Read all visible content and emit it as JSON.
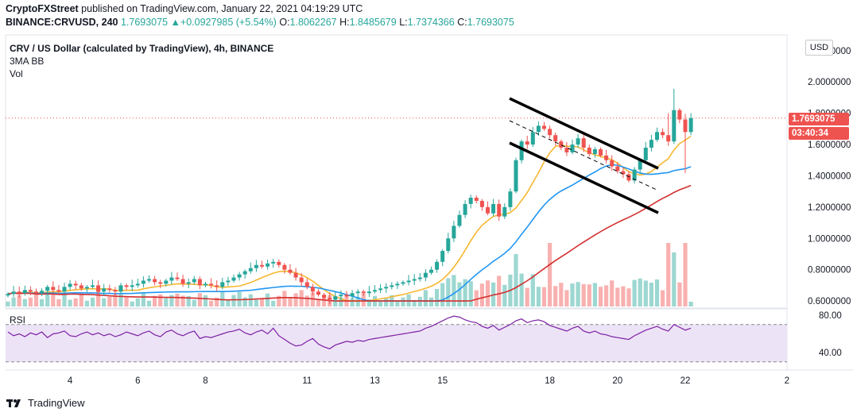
{
  "header": {
    "publisher": "CryptoFXStreet",
    "published_text": " published on TradingView.com, January 22, 2021 04:19:29 UTC",
    "symbol_code": "BINANCE:CRVUSD, 240",
    "last": "1.7693075",
    "change_arrow": "▲",
    "change": "+0.0927985 (+5.54%)",
    "o_label": "O:",
    "o": "1.8062267",
    "h_label": "H:",
    "h": "1.8485679",
    "l_label": "L:",
    "l": "1.7374366",
    "c_label": "C:",
    "c": "1.7693075"
  },
  "legend": {
    "symbol_title": "CRV / US Dollar (calculated by TradingView), 4h, BINANCE",
    "indicator_1": "3MA BB",
    "indicator_2": "Vol",
    "rsi_label": "RSI"
  },
  "price_scale": {
    "currency": "USD",
    "current_price_tag": "1.7693075",
    "countdown_tag": "03:40:34",
    "tag_color": "#ef5350"
  },
  "footer": {
    "brand": "TradingView"
  },
  "colors": {
    "up": "#26a69a",
    "down": "#ef5350",
    "ma_fast": "#f7b731",
    "ma_mid": "#2196f3",
    "ma_slow": "#d32f2f",
    "rsi_line": "#7b1fa2",
    "rsi_band": "#ede3f7"
  },
  "chart_data": [
    {
      "type": "candlestick",
      "title": "CRV / US Dollar (calculated by TradingView), 4h, BINANCE",
      "x_ticks": [
        "4",
        "6",
        "8",
        "11",
        "13",
        "15",
        "18",
        "20",
        "22",
        "2"
      ],
      "x_tick_index": [
        11,
        23,
        35,
        53,
        65,
        77,
        96,
        108,
        120,
        138
      ],
      "y_ticks": [
        "2.2000000",
        "2.0000000",
        "1.8000000",
        "1.6000000",
        "1.4000000",
        "1.2000000",
        "1.0000000",
        "0.8000000",
        "0.6000000"
      ],
      "y_tick_values": [
        2.2,
        2.0,
        1.8,
        1.6,
        1.4,
        1.2,
        1.0,
        0.8,
        0.6
      ],
      "ylim": [
        0.57,
        2.26
      ],
      "candle_count": 122,
      "close": [
        0.645,
        0.66,
        0.65,
        0.67,
        0.66,
        0.65,
        0.665,
        0.69,
        0.67,
        0.66,
        0.69,
        0.71,
        0.7,
        0.68,
        0.69,
        0.7,
        0.66,
        0.68,
        0.67,
        0.66,
        0.7,
        0.69,
        0.7,
        0.71,
        0.73,
        0.74,
        0.72,
        0.71,
        0.73,
        0.75,
        0.74,
        0.71,
        0.72,
        0.74,
        0.7,
        0.71,
        0.7,
        0.69,
        0.72,
        0.73,
        0.75,
        0.77,
        0.79,
        0.81,
        0.83,
        0.82,
        0.84,
        0.85,
        0.83,
        0.8,
        0.78,
        0.75,
        0.72,
        0.69,
        0.66,
        0.64,
        0.62,
        0.61,
        0.63,
        0.64,
        0.63,
        0.65,
        0.66,
        0.65,
        0.66,
        0.67,
        0.68,
        0.69,
        0.7,
        0.71,
        0.72,
        0.73,
        0.74,
        0.75,
        0.78,
        0.8,
        0.85,
        0.92,
        1.0,
        1.08,
        1.15,
        1.22,
        1.26,
        1.24,
        1.2,
        1.16,
        1.22,
        1.14,
        1.2,
        1.3,
        1.5,
        1.62,
        1.6,
        1.68,
        1.72,
        1.7,
        1.66,
        1.62,
        1.58,
        1.55,
        1.6,
        1.64,
        1.58,
        1.54,
        1.57,
        1.53,
        1.5,
        1.46,
        1.43,
        1.41,
        1.37,
        1.44,
        1.5,
        1.58,
        1.63,
        1.68,
        1.66,
        1.62,
        1.82,
        1.76,
        1.68,
        1.769
      ],
      "rsi": [
        62,
        58,
        60,
        57,
        61,
        59,
        62,
        56,
        60,
        61,
        63,
        58,
        57,
        60,
        62,
        59,
        61,
        58,
        60,
        57,
        59,
        62,
        60,
        58,
        61,
        63,
        59,
        57,
        62,
        64,
        60,
        58,
        61,
        63,
        55,
        57,
        56,
        58,
        60,
        62,
        63,
        65,
        61,
        59,
        62,
        64,
        60,
        66,
        58,
        54,
        50,
        47,
        48,
        52,
        55,
        49,
        46,
        44,
        48,
        50,
        52,
        51,
        53,
        52,
        54,
        55,
        56,
        57,
        58,
        59,
        60,
        61,
        62,
        63,
        66,
        68,
        71,
        74,
        77,
        79,
        78,
        75,
        73,
        72,
        68,
        66,
        69,
        64,
        67,
        70,
        74,
        76,
        72,
        74,
        75,
        73,
        69,
        67,
        65,
        63,
        66,
        68,
        63,
        61,
        63,
        60,
        59,
        57,
        56,
        55,
        54,
        58,
        61,
        64,
        66,
        68,
        65,
        63,
        70,
        67,
        64,
        66
      ],
      "rsi_ticks": [
        "80.00",
        "40.00"
      ],
      "rsi_tick_values": [
        80,
        40
      ],
      "rsi_bands": [
        70,
        30
      ]
    }
  ]
}
